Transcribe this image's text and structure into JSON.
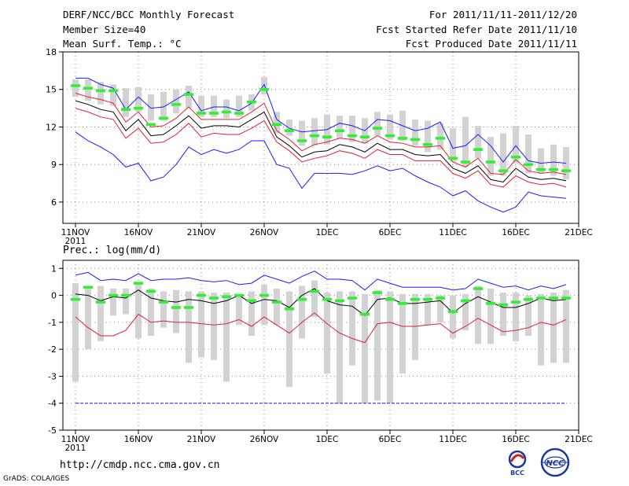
{
  "header": {
    "title": "DERF/NCC/BCC Monthly Forecast",
    "member": "Member Size=40",
    "variable1": "Mean Surf. Temp.: °C",
    "period": "For 2011/11/11-2011/12/20",
    "refer": "Fcst Started Refer Date 2011/11/10",
    "produced": "Fcst Produced Date 2011/11/11"
  },
  "footer": {
    "url": "http://cmdp.ncc.cma.gov.cn",
    "credit": "GrADS: COLA/IGES",
    "logo1_text": "BCC",
    "logo2_text": "NCC"
  },
  "colors": {
    "mean": "#000000",
    "spread": "#dd2233",
    "extreme": "#1a1aff",
    "obs": "#33ee33",
    "box": "#d2d2d2",
    "threshold": "#1a1aff"
  },
  "chart_data": [
    {
      "type": "line",
      "name": "temperature",
      "title": "Mean Surf. Temp.: °C",
      "x": [
        1,
        2,
        3,
        4,
        5,
        6,
        7,
        8,
        9,
        10,
        11,
        12,
        13,
        14,
        15,
        16,
        17,
        18,
        19,
        20,
        21,
        22,
        23,
        24,
        25,
        26,
        27,
        28,
        29,
        30,
        31,
        32,
        33,
        34,
        35,
        36,
        37,
        38,
        39,
        40
      ],
      "xlim": [
        0,
        41
      ],
      "ylim": [
        4.3,
        18
      ],
      "yticks": [
        6,
        9,
        12,
        15,
        18
      ],
      "ytick_labels": [
        "6",
        "9",
        "12",
        "15",
        "18"
      ],
      "xticks": [
        1,
        6,
        11,
        16,
        21,
        26,
        31,
        36,
        41
      ],
      "xtick_labels": [
        "11NOV",
        "16NOV",
        "21NOV",
        "26NOV",
        "1DEC",
        "6DEC",
        "11DEC",
        "16DEC",
        "21DEC"
      ],
      "xtick_sublabel": "2011",
      "series": [
        {
          "name": "max",
          "style": "extreme",
          "values": [
            15.9,
            15.9,
            15.4,
            15.1,
            13.4,
            14.4,
            13.5,
            13.6,
            14.2,
            14.8,
            13.3,
            13.6,
            13.6,
            13.3,
            13.9,
            15.4,
            12.6,
            11.9,
            11.6,
            11.7,
            11.8,
            12.3,
            12.1,
            11.7,
            12.6,
            12.5,
            12.1,
            11.7,
            11.9,
            12.4,
            10.3,
            10.5,
            11.4,
            10.5,
            9.2,
            10.5,
            9.3,
            9.1,
            9.2,
            9.1
          ]
        },
        {
          "name": "upper",
          "style": "spread",
          "values": [
            14.7,
            14.4,
            14.2,
            13.9,
            12.4,
            13.2,
            12.0,
            12.1,
            12.7,
            13.6,
            12.6,
            12.6,
            12.6,
            12.6,
            13.2,
            13.9,
            11.7,
            11.0,
            10.1,
            10.6,
            10.8,
            11.1,
            11.0,
            10.7,
            11.3,
            10.8,
            10.7,
            10.4,
            10.4,
            10.5,
            9.2,
            8.8,
            9.5,
            8.3,
            8.2,
            9.4,
            8.5,
            8.3,
            8.4,
            8.2
          ]
        },
        {
          "name": "mean",
          "style": "mean",
          "values": [
            14.1,
            13.8,
            13.4,
            13.2,
            11.7,
            12.6,
            11.3,
            11.4,
            12.1,
            12.9,
            11.9,
            12.1,
            12.1,
            12.0,
            12.6,
            13.2,
            11.2,
            10.5,
            9.6,
            10.0,
            10.1,
            10.6,
            10.4,
            10.0,
            10.7,
            10.2,
            10.2,
            9.8,
            9.7,
            9.8,
            8.7,
            8.3,
            8.9,
            7.8,
            7.6,
            8.7,
            8.0,
            7.8,
            7.9,
            7.7
          ]
        },
        {
          "name": "lower",
          "style": "spread",
          "values": [
            13.5,
            13.2,
            12.8,
            12.6,
            11.1,
            11.9,
            10.7,
            10.8,
            11.4,
            12.3,
            11.2,
            11.5,
            11.4,
            11.4,
            11.9,
            12.5,
            10.8,
            10.1,
            9.2,
            9.5,
            9.7,
            10.1,
            9.9,
            9.5,
            10.2,
            9.8,
            9.8,
            9.3,
            9.3,
            9.3,
            8.3,
            7.9,
            8.5,
            7.4,
            7.2,
            8.1,
            7.6,
            7.4,
            7.5,
            7.2
          ]
        },
        {
          "name": "min",
          "style": "extreme",
          "values": [
            11.6,
            10.9,
            10.4,
            9.8,
            8.8,
            9.1,
            7.7,
            8.0,
            9.0,
            10.4,
            9.8,
            10.2,
            9.9,
            10.2,
            10.9,
            10.9,
            9.0,
            8.7,
            7.1,
            8.3,
            8.3,
            8.3,
            8.2,
            8.5,
            8.9,
            8.5,
            8.7,
            8.1,
            7.6,
            7.2,
            6.5,
            6.9,
            6.1,
            5.6,
            5.2,
            5.6,
            6.8,
            6.5,
            6.4,
            6.3
          ]
        },
        {
          "name": "obs",
          "style": "obs",
          "values": [
            15.3,
            15.1,
            14.9,
            14.9,
            13.4,
            13.5,
            12.2,
            12.7,
            13.8,
            14.6,
            13.1,
            13.1,
            13.2,
            13.1,
            14.0,
            15.0,
            12.2,
            11.7,
            10.9,
            11.3,
            11.2,
            11.7,
            11.3,
            11.2,
            11.9,
            11.3,
            11.1,
            11.0,
            10.6,
            11.1,
            9.5,
            9.2,
            10.2,
            9.2,
            8.5,
            9.6,
            9.0,
            8.6,
            8.6,
            8.5
          ]
        },
        {
          "name": "box_high",
          "style": "box",
          "values": [
            15.8,
            15.8,
            15.6,
            15.4,
            15.1,
            15.2,
            14.6,
            14.8,
            15.0,
            15.3,
            14.5,
            14.5,
            14.2,
            14.5,
            14.6,
            16.0,
            13.2,
            12.6,
            12.5,
            12.7,
            13.0,
            12.9,
            12.9,
            12.7,
            13.2,
            13.0,
            13.3,
            12.6,
            12.5,
            12.3,
            11.9,
            12.8,
            12.1,
            11.2,
            11.5,
            12.1,
            11.4,
            10.3,
            10.6,
            10.4
          ]
        },
        {
          "name": "box_low",
          "style": "box",
          "values": [
            14.4,
            14.1,
            13.8,
            13.7,
            12.8,
            13.2,
            12.5,
            12.5,
            13.1,
            13.5,
            12.8,
            12.8,
            12.7,
            12.8,
            13.3,
            14.6,
            11.5,
            11.3,
            10.5,
            10.5,
            10.6,
            11.1,
            10.8,
            10.7,
            11.3,
            11.0,
            10.9,
            10.5,
            10.0,
            10.2,
            9.2,
            8.8,
            9.5,
            8.1,
            8.1,
            9.1,
            8.3,
            8.3,
            8.1,
            7.8
          ]
        }
      ]
    },
    {
      "type": "line",
      "name": "precipitation",
      "title": "Prec.: log(mm/d)",
      "x": [
        1,
        2,
        3,
        4,
        5,
        6,
        7,
        8,
        9,
        10,
        11,
        12,
        13,
        14,
        15,
        16,
        17,
        18,
        19,
        20,
        21,
        22,
        23,
        24,
        25,
        26,
        27,
        28,
        29,
        30,
        31,
        32,
        33,
        34,
        35,
        36,
        37,
        38,
        39,
        40
      ],
      "xlim": [
        0,
        41
      ],
      "ylim": [
        -5,
        1.3
      ],
      "yticks": [
        -5,
        -4,
        -3,
        -2,
        -1,
        0,
        1
      ],
      "ytick_labels": [
        "-5",
        "-4",
        "-3",
        "-2",
        "-1",
        "0",
        "1"
      ],
      "xticks": [
        1,
        6,
        11,
        16,
        21,
        26,
        31,
        36,
        41
      ],
      "xtick_labels": [
        "11NOV",
        "16NOV",
        "21NOV",
        "26NOV",
        "1DEC",
        "6DEC",
        "11DEC",
        "16DEC",
        "21DEC"
      ],
      "xtick_sublabel": "2011",
      "threshold": -4,
      "series": [
        {
          "name": "max",
          "style": "extreme",
          "values": [
            0.75,
            0.85,
            0.55,
            0.6,
            0.55,
            0.8,
            0.55,
            0.6,
            0.6,
            0.65,
            0.55,
            0.5,
            0.55,
            0.4,
            0.45,
            0.75,
            0.6,
            0.45,
            0.7,
            0.9,
            0.6,
            0.6,
            0.55,
            0.2,
            0.6,
            0.45,
            0.3,
            0.3,
            0.3,
            0.3,
            0.2,
            0.25,
            0.6,
            0.45,
            0.3,
            0.35,
            0.2,
            0.35,
            0.25,
            0.4
          ]
        },
        {
          "name": "mean",
          "style": "mean",
          "values": [
            0.05,
            0.0,
            -0.2,
            -0.05,
            -0.1,
            0.2,
            -0.1,
            -0.2,
            -0.25,
            -0.15,
            -0.2,
            -0.3,
            -0.2,
            0.0,
            -0.3,
            -0.15,
            -0.2,
            -0.45,
            0.0,
            0.25,
            -0.2,
            -0.35,
            -0.4,
            -0.75,
            -0.15,
            -0.1,
            -0.3,
            -0.3,
            -0.25,
            -0.2,
            -0.65,
            -0.3,
            -0.05,
            -0.25,
            -0.45,
            -0.45,
            -0.3,
            -0.1,
            -0.2,
            -0.15
          ]
        },
        {
          "name": "min",
          "style": "spread",
          "values": [
            -0.8,
            -1.2,
            -1.5,
            -1.5,
            -1.3,
            -0.7,
            -1.0,
            -0.95,
            -1.0,
            -1.0,
            -1.05,
            -1.1,
            -1.05,
            -0.9,
            -1.15,
            -0.8,
            -1.1,
            -1.4,
            -1.0,
            -0.65,
            -1.05,
            -1.4,
            -1.6,
            -1.75,
            -1.05,
            -1.0,
            -1.15,
            -1.15,
            -1.1,
            -1.05,
            -1.4,
            -1.15,
            -0.85,
            -1.1,
            -1.35,
            -1.3,
            -1.2,
            -1.0,
            -1.1,
            -0.9
          ]
        },
        {
          "name": "obs",
          "style": "obs",
          "values": [
            -0.15,
            0.3,
            -0.25,
            0.0,
            0.0,
            0.45,
            0.15,
            -0.25,
            -0.45,
            -0.45,
            0.0,
            -0.1,
            -0.05,
            0.0,
            -0.2,
            0.0,
            -0.25,
            -0.5,
            -0.15,
            0.15,
            -0.15,
            -0.2,
            -0.1,
            -0.7,
            0.1,
            -0.15,
            -0.3,
            -0.15,
            -0.15,
            -0.1,
            -0.6,
            -0.2,
            0.25,
            -0.3,
            -0.35,
            -0.25,
            -0.15,
            -0.1,
            -0.1,
            -0.1
          ]
        },
        {
          "name": "box_high",
          "style": "box",
          "values": [
            0.45,
            0.35,
            0.35,
            0.25,
            0.25,
            0.5,
            0.25,
            0.15,
            0.2,
            0.15,
            0.15,
            0.1,
            0.1,
            0.05,
            0.15,
            0.4,
            0.25,
            0.15,
            0.35,
            0.55,
            0.1,
            0.15,
            0.15,
            0.05,
            0.2,
            0.15,
            0.05,
            0.05,
            0.05,
            0.0,
            0.0,
            0.05,
            0.35,
            0.25,
            0.1,
            0.1,
            0.0,
            0.05,
            0.1,
            0.2
          ]
        },
        {
          "name": "box_low",
          "style": "box",
          "values": [
            -3.2,
            -2.0,
            -1.7,
            -0.75,
            -0.7,
            -1.6,
            -1.5,
            -1.2,
            -1.4,
            -2.5,
            -2.3,
            -2.4,
            -3.2,
            -1.1,
            -1.5,
            -1.1,
            -1.1,
            -3.4,
            -1.6,
            -0.8,
            -2.9,
            -4.0,
            -2.6,
            -4.0,
            -3.9,
            -4.0,
            -2.9,
            -2.4,
            -1.1,
            -1.0,
            -1.6,
            -1.3,
            -1.8,
            -1.8,
            -1.5,
            -1.7,
            -1.5,
            -2.6,
            -2.5,
            -2.5
          ]
        }
      ]
    }
  ]
}
